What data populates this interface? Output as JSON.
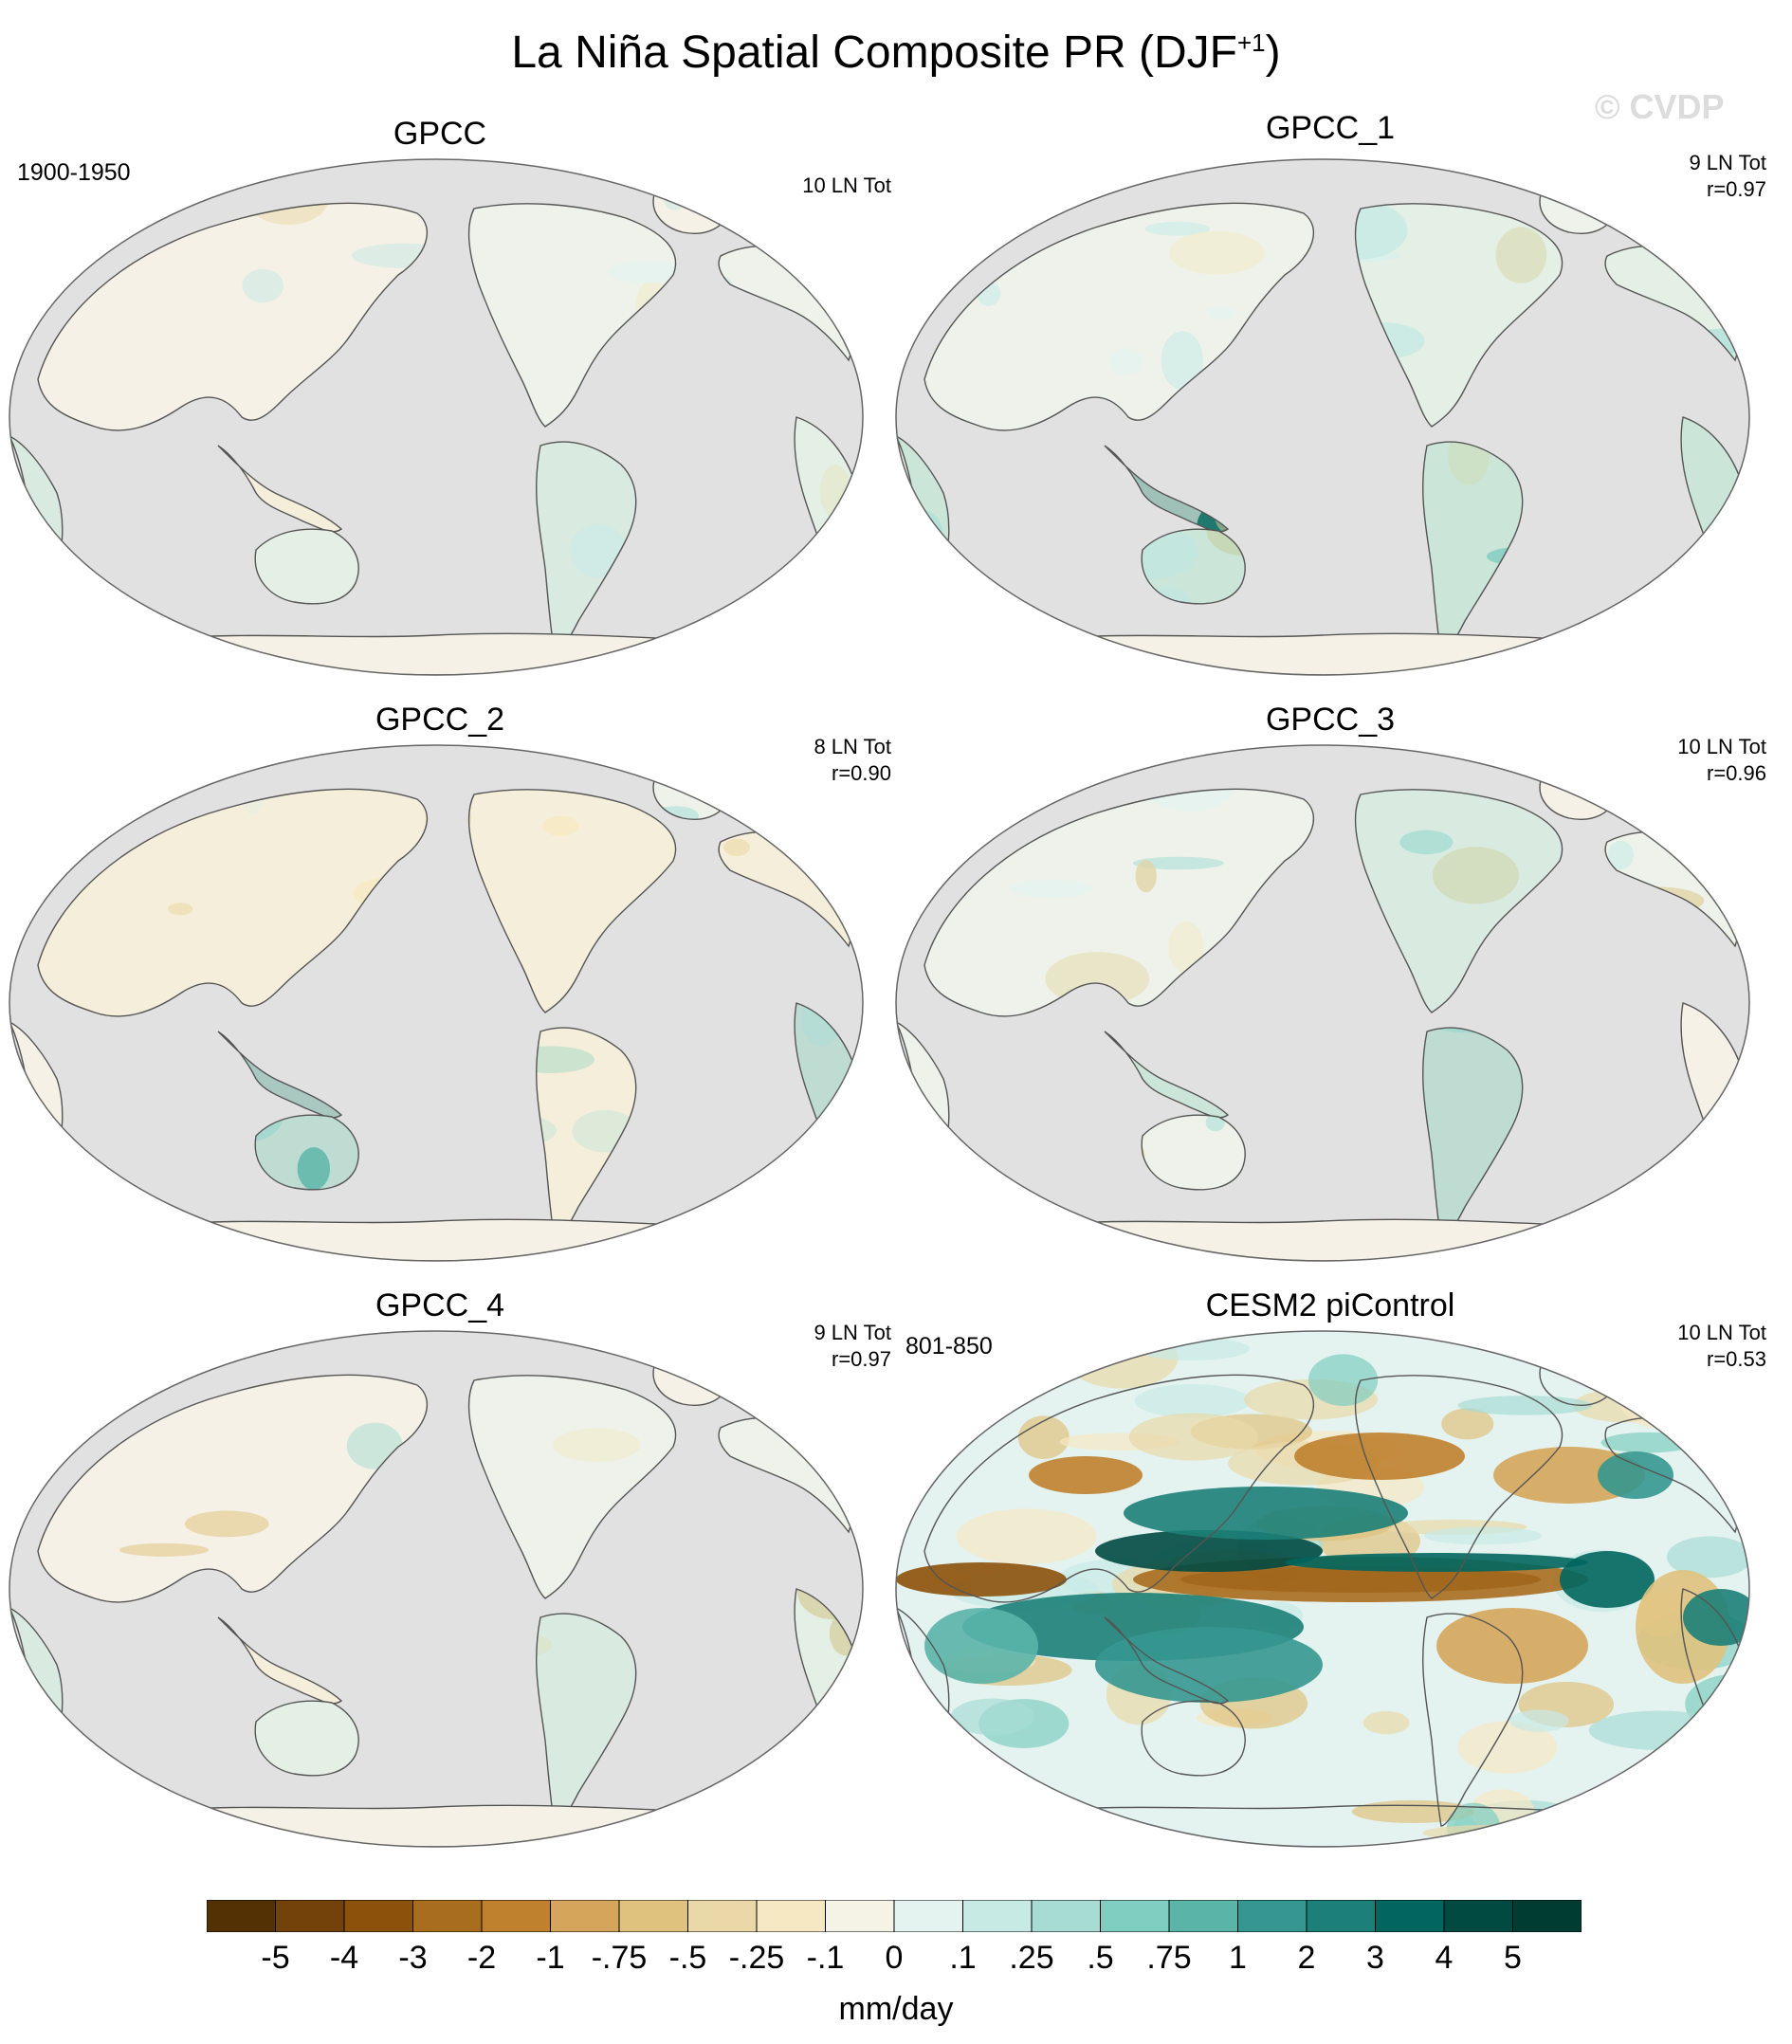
{
  "title": {
    "main": "La Niña Spatial Composite PR (DJF",
    "superscript": "+1",
    "close": ")"
  },
  "watermark": "© CVDP",
  "panels": [
    {
      "title": "GPCC",
      "period": "1900-1950",
      "count": "10 LN Tot",
      "corr": ""
    },
    {
      "title": "GPCC_1",
      "period": "",
      "count": "9 LN Tot",
      "corr": "r=0.97"
    },
    {
      "title": "GPCC_2",
      "period": "",
      "count": "8 LN Tot",
      "corr": "r=0.90"
    },
    {
      "title": "GPCC_3",
      "period": "",
      "count": "10 LN Tot",
      "corr": "r=0.96"
    },
    {
      "title": "GPCC_4",
      "period": "",
      "count": "9 LN Tot",
      "corr": "r=0.97"
    },
    {
      "title": "CESM2 piControl",
      "period": "801-850",
      "count": "10 LN Tot",
      "corr": "r=0.53"
    }
  ],
  "colorbar": {
    "labels": [
      "-5",
      "-4",
      "-3",
      "-2",
      "-1",
      "-.75",
      "-.5",
      "-.25",
      "-.1",
      "0",
      ".1",
      ".25",
      ".5",
      ".75",
      "1",
      "2",
      "3",
      "4",
      "5"
    ],
    "colors": [
      "#543005",
      "#73420a",
      "#8c510a",
      "#a86d1f",
      "#bf812d",
      "#d4a55a",
      "#dfc27d",
      "#ead8a8",
      "#f6e8c3",
      "#f5f2e6",
      "#e4f3f0",
      "#c7eae5",
      "#a6dcd3",
      "#80cdc1",
      "#5ab4a8",
      "#35978f",
      "#1c7f78",
      "#01665e",
      "#014a42",
      "#003c30"
    ],
    "units": "mm/day"
  },
  "map_colors": {
    "ocean": "#e1e1e1",
    "land_neutral": "#f5f2e6",
    "outline": "#555555"
  }
}
